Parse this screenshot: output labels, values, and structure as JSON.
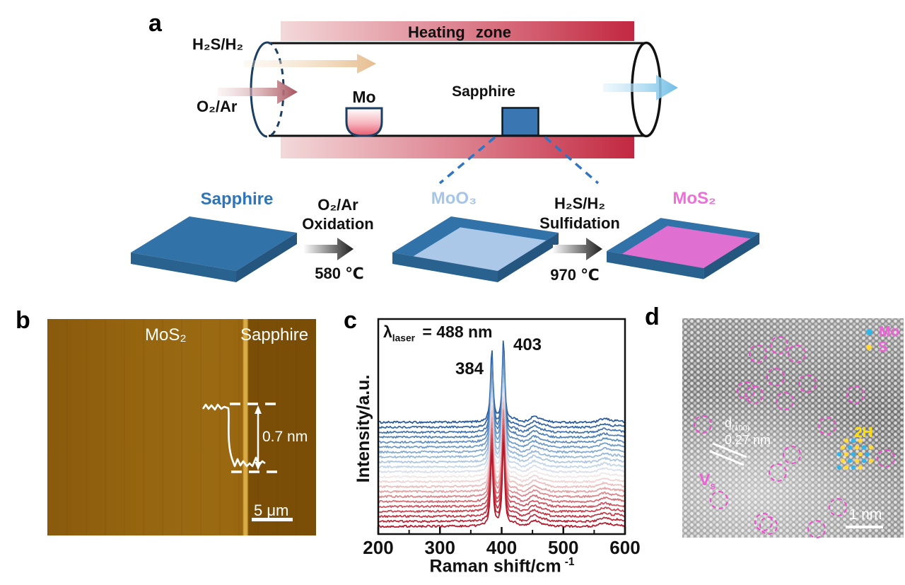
{
  "figure": {
    "panels": {
      "a": "a",
      "b": "b",
      "c": "c",
      "d": "d"
    }
  },
  "furnace": {
    "heating_zone": "Heating zone",
    "gas_top": "H₂S/H₂",
    "gas_bottom": "O₂/Ar",
    "boat": "Mo",
    "substrate": "Sapphire",
    "colors": {
      "heat_light": "#f3d9da",
      "heat_dark": "#c22840",
      "tube_navy": "#1b3f63",
      "sapphire_blue": "#3a77b2",
      "boat_red": "#e85a6e",
      "h2s_arrow": "#e7bd8e",
      "o2_arrow": "#a9545e",
      "out_arrow": "#7fc4e8",
      "dash_blue": "#2e76c4"
    }
  },
  "process": {
    "step1": {
      "label": "Sapphire",
      "color": "#2e74b8"
    },
    "arrow1": {
      "gas": "O₂/Ar",
      "action": "Oxidation",
      "temp": "580 ℃"
    },
    "step2": {
      "label": "MoO₃",
      "color": "#a6c6e8"
    },
    "arrow2": {
      "gas": "H₂S/H₂",
      "action": "Sulfidation",
      "temp": "970 ℃"
    },
    "step3": {
      "label": "MoS₂",
      "color": "#ee6fd8"
    },
    "slab_colors": {
      "top": "#3173a9",
      "front": "#29618f",
      "side": "#255680",
      "moo3_film": "#abc8e8",
      "mos2_film": "#e06fd2"
    }
  },
  "afm": {
    "left_label": "MoS₂",
    "right_label": "Sapphire",
    "step_height": "0.7 nm",
    "scale_bar": "5 μm",
    "colors": {
      "mos2": "#95640f",
      "sapphire": "#7b4e08",
      "edge": "#deb046"
    }
  },
  "chart_data": {
    "type": "line",
    "panel": "c",
    "title": "",
    "xlabel": "Raman shift/cm",
    "xlabel_sup": "-1",
    "ylabel": "Intensity/a.u.",
    "annotation": {
      "lambda": "λ",
      "sub": "laser",
      "rest": "= 488 nm"
    },
    "x_range": [
      200,
      600
    ],
    "x_ticks": [
      "200",
      "300",
      "400",
      "500",
      "600"
    ],
    "x_minor_ticks": [
      250,
      350,
      450,
      550
    ],
    "peak_labels": [
      {
        "text": "384",
        "x_cm": 384
      },
      {
        "text": "403",
        "x_cm": 403
      }
    ],
    "n_traces": 22,
    "series_note": "22 stacked Raman spectra of MoS2 film, vertically offset; color runs dark blue (top) through white to dark red (bottom)",
    "peaks": [
      {
        "center": 384,
        "amp": 107,
        "width": 2.3
      },
      {
        "center": 403,
        "amp": 122,
        "width": 2.3
      }
    ],
    "bumps": [
      {
        "center": 421,
        "amp": 4,
        "width": 5
      },
      {
        "center": 453,
        "amp": 8,
        "width": 7
      },
      {
        "center": 470,
        "amp": 3,
        "width": 6
      },
      {
        "center": 567,
        "amp": 5,
        "width": 8
      },
      {
        "center": 588,
        "amp": 2.5,
        "width": 6
      }
    ],
    "noise_amp": 1.4,
    "palette_stops": [
      [
        0,
        "#27599f"
      ],
      [
        0.25,
        "#6f9dcd"
      ],
      [
        0.45,
        "#ccdcec"
      ],
      [
        0.52,
        "#f0e8ea"
      ],
      [
        0.6,
        "#eec9c9"
      ],
      [
        0.8,
        "#d2545e"
      ],
      [
        1,
        "#b5182a"
      ]
    ]
  },
  "stem": {
    "legend": [
      {
        "label": "Mo",
        "dot": "#33b5e8"
      },
      {
        "label": "S",
        "dot": "#ffd83a"
      }
    ],
    "legend_text_color": "#f060d8",
    "d_label": {
      "main": "d",
      "sub": "(100)",
      "value": "0.27 nm"
    },
    "phase": "2H",
    "vacancy": {
      "main": "V",
      "sub": "s"
    },
    "scale_bar": "1 nm",
    "atom_colors": {
      "mo": "#33b5e8",
      "s": "#ffd83a"
    },
    "vacancies_pct": [
      [
        43.8,
        12.3
      ],
      [
        34.2,
        16.1
      ],
      [
        51.8,
        16.1
      ],
      [
        42.2,
        26.8
      ],
      [
        56.5,
        29.7
      ],
      [
        28.8,
        32.9
      ],
      [
        32.6,
        34.8
      ],
      [
        78.3,
        34.8
      ],
      [
        46.3,
        37.7
      ],
      [
        9.3,
        48.4
      ],
      [
        65.5,
        49.0
      ],
      [
        92.0,
        63.9
      ],
      [
        49.5,
        62.3
      ],
      [
        43.1,
        70.3
      ],
      [
        16.6,
        82.9
      ],
      [
        36.7,
        92.9
      ],
      [
        39.0,
        94.5
      ],
      [
        70.3,
        86.1
      ],
      [
        60.7,
        96.1
      ]
    ]
  }
}
